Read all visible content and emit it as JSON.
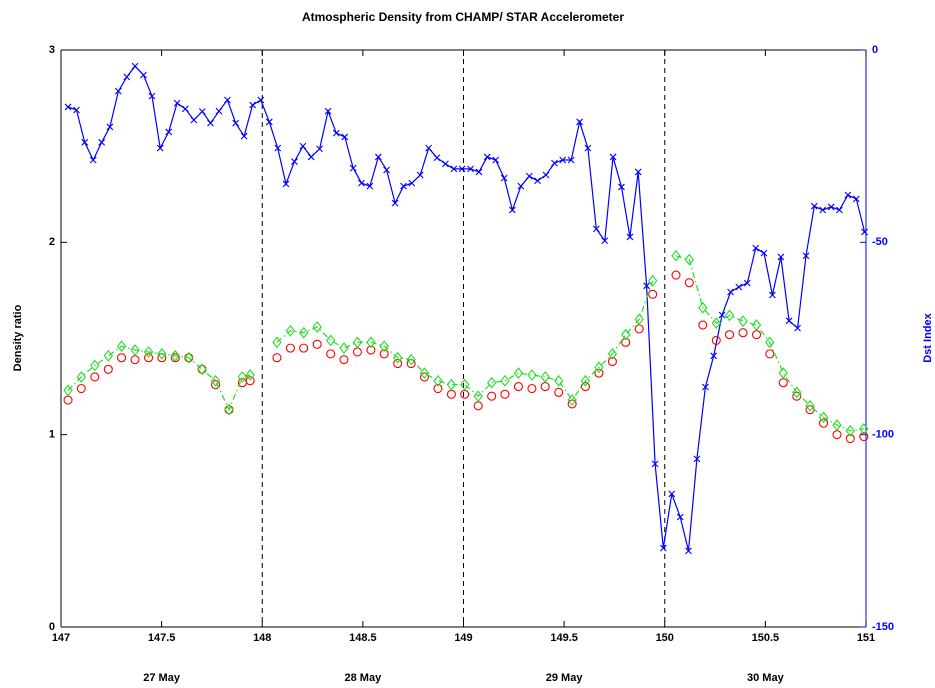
{
  "chart_data": {
    "type": "line",
    "title": "Atmospheric Density from CHAMP/ STAR Accelerometer",
    "ylabel": "Density ratio",
    "y2label": "Dst Index",
    "xlim": [
      147,
      151
    ],
    "xticks": [
      147,
      147.5,
      148,
      148.5,
      149,
      149.5,
      150,
      150.5,
      151
    ],
    "ylim": [
      0,
      3
    ],
    "yticks": [
      0,
      1,
      2,
      3
    ],
    "y2lim": [
      -150,
      0
    ],
    "y2ticks": [
      -150,
      -100,
      -50,
      0
    ],
    "vlines": [
      148,
      149,
      150
    ],
    "annotations": [
      {
        "text": "27 May",
        "x": 147.5
      },
      {
        "text": "28 May",
        "x": 148.5
      },
      {
        "text": "29 May",
        "x": 149.5
      },
      {
        "text": "30 May",
        "x": 150.5
      }
    ],
    "series": [
      {
        "color": "#0000ff",
        "marker": "x",
        "line": "solid",
        "axis": "y2",
        "x": [
          147.035,
          147.077,
          147.118,
          147.16,
          147.202,
          147.243,
          147.285,
          147.327,
          147.368,
          147.41,
          147.452,
          147.493,
          147.535,
          147.577,
          147.618,
          147.66,
          147.702,
          147.743,
          147.785,
          147.827,
          147.868,
          147.91,
          147.952,
          147.993,
          148.035,
          148.077,
          148.118,
          148.16,
          148.202,
          148.243,
          148.285,
          148.327,
          148.368,
          148.41,
          148.452,
          148.493,
          148.535,
          148.577,
          148.618,
          148.66,
          148.702,
          148.743,
          148.785,
          148.827,
          148.868,
          148.91,
          148.952,
          148.993,
          149.035,
          149.077,
          149.118,
          149.16,
          149.202,
          149.243,
          149.285,
          149.327,
          149.368,
          149.41,
          149.452,
          149.493,
          149.535,
          149.577,
          149.618,
          149.66,
          149.702,
          149.743,
          149.785,
          149.827,
          149.868,
          149.91,
          149.952,
          149.993,
          150.035,
          150.077,
          150.118,
          150.16,
          150.202,
          150.243,
          150.285,
          150.327,
          150.368,
          150.41,
          150.452,
          150.493,
          150.535,
          150.577,
          150.618,
          150.66,
          150.702,
          150.743,
          150.785,
          150.827,
          150.868,
          150.91,
          150.952,
          150.993
        ],
        "values": [
          -14.8,
          -15.6,
          -24,
          -28.6,
          -24,
          -20,
          -10.7,
          -7,
          -4.2,
          -6.5,
          -12,
          -25.5,
          -21.3,
          -13.8,
          -15.3,
          -18.2,
          -16,
          -19,
          -15.9,
          -13,
          -19,
          -22.4,
          -14.3,
          -13,
          -18.7,
          -25.5,
          -34.8,
          -29,
          -25,
          -27.8,
          -25.7,
          -15.9,
          -21.6,
          -22.6,
          -30.7,
          -34.6,
          -35.4,
          -27.8,
          -31.2,
          -39.8,
          -35.4,
          -34.6,
          -32.5,
          -25.5,
          -28,
          -29.6,
          -30.9,
          -30.9,
          -30.9,
          -31.7,
          -27.8,
          -28.6,
          -33.3,
          -41.6,
          -35.4,
          -32.8,
          -34,
          -32.5,
          -29.4,
          -28.6,
          -28.6,
          -18.7,
          -25.5,
          -46.5,
          -49.6,
          -27.8,
          -35.6,
          -48.6,
          -31.7,
          -61.3,
          -107.6,
          -129.5,
          -115.4,
          -121.4,
          -130.2,
          -106.3,
          -87.6,
          -79.5,
          -68.9,
          -62.9,
          -61.6,
          -60.6,
          -51.5,
          -52.8,
          -63.7,
          -53.8,
          -70.4,
          -72.3,
          -53.5,
          -40.6,
          -41.6,
          -40.8,
          -41.6,
          -37.7,
          -38.7,
          -47.3
        ]
      },
      {
        "color": "#ff0000",
        "marker": "o",
        "line": "none",
        "x": [
          147.035,
          147.101,
          147.168,
          147.235,
          147.301,
          147.368,
          147.435,
          147.501,
          147.568,
          147.635,
          147.701,
          147.768,
          147.835,
          147.901,
          147.94,
          null,
          148.073,
          148.14,
          148.206,
          148.273,
          148.34,
          148.406,
          148.473,
          148.54,
          148.606,
          148.673,
          148.74,
          148.806,
          148.873,
          148.94,
          149.006,
          149.073,
          149.14,
          149.206,
          149.273,
          149.34,
          149.406,
          149.473,
          149.54,
          149.606,
          149.673,
          149.74,
          149.806,
          149.873,
          149.94,
          null,
          150.056,
          150.122,
          150.189,
          150.256,
          150.322,
          150.389,
          150.456,
          150.522,
          150.589,
          150.656,
          150.722,
          150.789,
          150.856,
          150.922,
          150.989
        ],
        "values": [
          1.18,
          1.24,
          1.3,
          1.34,
          1.4,
          1.39,
          1.4,
          1.4,
          1.4,
          1.4,
          1.34,
          1.26,
          1.13,
          1.27,
          1.28,
          null,
          1.4,
          1.45,
          1.45,
          1.47,
          1.42,
          1.39,
          1.43,
          1.44,
          1.42,
          1.37,
          1.37,
          1.3,
          1.24,
          1.21,
          1.21,
          1.15,
          1.2,
          1.21,
          1.25,
          1.24,
          1.25,
          1.22,
          1.16,
          1.25,
          1.32,
          1.38,
          1.48,
          1.55,
          1.73,
          null,
          1.83,
          1.79,
          1.57,
          1.49,
          1.52,
          1.53,
          1.52,
          1.42,
          1.27,
          1.2,
          1.13,
          1.06,
          1.0,
          0.98,
          0.99
        ]
      },
      {
        "color": "#22dd22",
        "marker": "d",
        "line": "dashdot",
        "x": [
          147.035,
          147.101,
          147.168,
          147.235,
          147.301,
          147.368,
          147.435,
          147.501,
          147.568,
          147.635,
          147.701,
          147.768,
          147.835,
          147.901,
          147.94,
          null,
          148.073,
          148.14,
          148.206,
          148.273,
          148.34,
          148.406,
          148.473,
          148.54,
          148.606,
          148.673,
          148.74,
          148.806,
          148.873,
          148.94,
          149.006,
          149.073,
          149.14,
          149.206,
          149.273,
          149.34,
          149.406,
          149.473,
          149.54,
          149.606,
          149.673,
          149.74,
          149.806,
          149.873,
          149.94,
          null,
          150.056,
          150.122,
          150.189,
          150.256,
          150.322,
          150.389,
          150.456,
          150.522,
          150.589,
          150.656,
          150.722,
          150.789,
          150.856,
          150.922,
          150.989
        ],
        "values": [
          1.23,
          1.3,
          1.36,
          1.41,
          1.46,
          1.44,
          1.43,
          1.42,
          1.41,
          1.4,
          1.34,
          1.28,
          1.13,
          1.3,
          1.31,
          null,
          1.48,
          1.54,
          1.53,
          1.56,
          1.49,
          1.45,
          1.48,
          1.48,
          1.46,
          1.4,
          1.39,
          1.32,
          1.28,
          1.26,
          1.26,
          1.2,
          1.27,
          1.28,
          1.32,
          1.31,
          1.3,
          1.28,
          1.18,
          1.28,
          1.35,
          1.42,
          1.52,
          1.6,
          1.8,
          null,
          1.93,
          1.91,
          1.66,
          1.58,
          1.62,
          1.59,
          1.57,
          1.48,
          1.32,
          1.22,
          1.15,
          1.09,
          1.05,
          1.02,
          1.03
        ]
      }
    ]
  }
}
